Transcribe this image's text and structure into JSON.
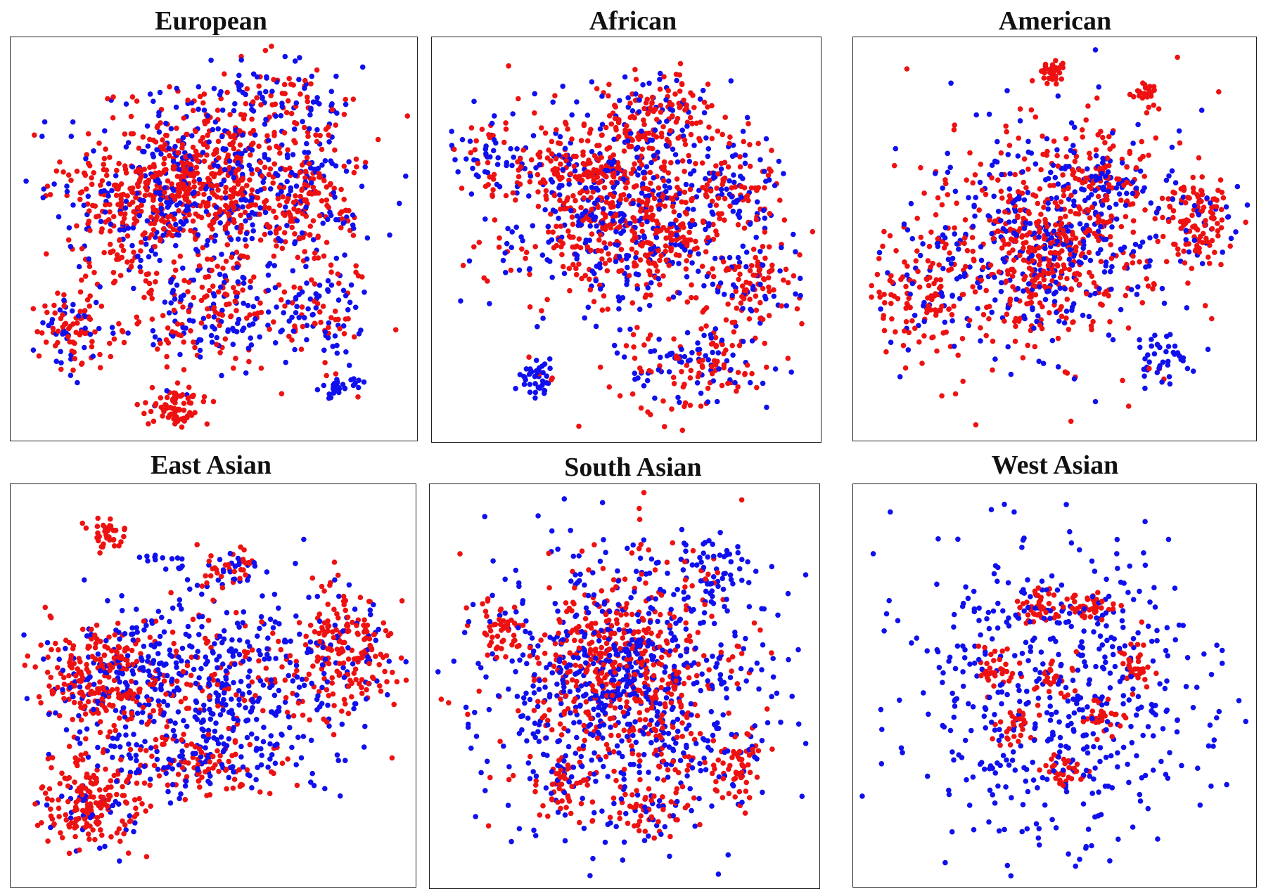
{
  "chart_data": [
    {
      "type": "scatter",
      "title": "European",
      "xlabel": "",
      "ylabel": "",
      "xlim": [
        0,
        100
      ],
      "ylim": [
        0,
        100
      ],
      "grid": false,
      "series_colors": [
        "#1010ee",
        "#ee1111"
      ],
      "clusters": [
        {
          "x": 48,
          "y": 62,
          "sx": 18,
          "sy": 11,
          "n": 600,
          "red": 0.55
        },
        {
          "x": 48,
          "y": 65,
          "sx": 9,
          "sy": 6,
          "n": 180,
          "red": 0.85
        },
        {
          "x": 72,
          "y": 62,
          "sx": 7,
          "sy": 8,
          "n": 160,
          "red": 0.7
        },
        {
          "x": 30,
          "y": 58,
          "sx": 8,
          "sy": 8,
          "n": 160,
          "red": 0.75
        },
        {
          "x": 50,
          "y": 32,
          "sx": 10,
          "sy": 8,
          "n": 220,
          "red": 0.5
        },
        {
          "x": 78,
          "y": 30,
          "sx": 6,
          "sy": 7,
          "n": 100,
          "red": 0.45
        },
        {
          "x": 15,
          "y": 27,
          "sx": 5,
          "sy": 5,
          "n": 110,
          "red": 0.55
        },
        {
          "x": 40,
          "y": 8,
          "sx": 3.5,
          "sy": 3,
          "n": 80,
          "red": 0.95
        },
        {
          "x": 81,
          "y": 13,
          "sx": 2.5,
          "sy": 1.5,
          "n": 30,
          "red": 0.0
        },
        {
          "x": 62,
          "y": 85,
          "sx": 12,
          "sy": 6,
          "n": 150,
          "red": 0.5
        }
      ]
    },
    {
      "type": "scatter",
      "title": "African",
      "xlabel": "",
      "ylabel": "",
      "xlim": [
        0,
        100
      ],
      "ylim": [
        0,
        100
      ],
      "grid": false,
      "series_colors": [
        "#1010ee",
        "#ee1111"
      ],
      "clusters": [
        {
          "x": 48,
          "y": 58,
          "sx": 17,
          "sy": 14,
          "n": 620,
          "red": 0.55
        },
        {
          "x": 38,
          "y": 65,
          "sx": 8,
          "sy": 7,
          "n": 160,
          "red": 0.8
        },
        {
          "x": 58,
          "y": 80,
          "sx": 7,
          "sy": 6,
          "n": 150,
          "red": 0.7
        },
        {
          "x": 56,
          "y": 50,
          "sx": 7,
          "sy": 6,
          "n": 140,
          "red": 0.75
        },
        {
          "x": 78,
          "y": 62,
          "sx": 6,
          "sy": 7,
          "n": 110,
          "red": 0.6
        },
        {
          "x": 82,
          "y": 40,
          "sx": 7,
          "sy": 5,
          "n": 110,
          "red": 0.65
        },
        {
          "x": 67,
          "y": 18,
          "sx": 9,
          "sy": 6,
          "n": 160,
          "red": 0.6
        },
        {
          "x": 27,
          "y": 16,
          "sx": 2.5,
          "sy": 2.5,
          "n": 45,
          "red": 0.05
        },
        {
          "x": 12,
          "y": 72,
          "sx": 4,
          "sy": 6,
          "n": 50,
          "red": 0.4
        }
      ]
    },
    {
      "type": "scatter",
      "title": "American",
      "xlabel": "",
      "ylabel": "",
      "xlim": [
        0,
        100
      ],
      "ylim": [
        0,
        100
      ],
      "grid": false,
      "series_colors": [
        "#1010ee",
        "#ee1111"
      ],
      "clusters": [
        {
          "x": 48,
          "y": 50,
          "sx": 18,
          "sy": 16,
          "n": 700,
          "red": 0.55
        },
        {
          "x": 46,
          "y": 46,
          "sx": 7,
          "sy": 7,
          "n": 180,
          "red": 0.8
        },
        {
          "x": 63,
          "y": 65,
          "sx": 7,
          "sy": 5,
          "n": 120,
          "red": 0.6
        },
        {
          "x": 87,
          "y": 56,
          "sx": 4.5,
          "sy": 6,
          "n": 110,
          "red": 0.8
        },
        {
          "x": 15,
          "y": 35,
          "sx": 6,
          "sy": 7,
          "n": 110,
          "red": 0.75
        },
        {
          "x": 49,
          "y": 92,
          "sx": 2,
          "sy": 1.8,
          "n": 35,
          "red": 1.0
        },
        {
          "x": 73,
          "y": 87,
          "sx": 1.6,
          "sy": 1.6,
          "n": 25,
          "red": 1.0
        },
        {
          "x": 77,
          "y": 20,
          "sx": 3,
          "sy": 3.5,
          "n": 40,
          "red": 0.15
        }
      ]
    },
    {
      "type": "scatter",
      "title": "East Asian",
      "xlabel": "",
      "ylabel": "",
      "xlim": [
        0,
        100
      ],
      "ylim": [
        0,
        100
      ],
      "grid": false,
      "series_colors": [
        "#1010ee",
        "#ee1111"
      ],
      "clusters": [
        {
          "x": 48,
          "y": 50,
          "sx": 19,
          "sy": 11,
          "n": 650,
          "red": 0.3
        },
        {
          "x": 21,
          "y": 52,
          "sx": 8,
          "sy": 7,
          "n": 230,
          "red": 0.85
        },
        {
          "x": 83,
          "y": 60,
          "sx": 6,
          "sy": 7,
          "n": 200,
          "red": 0.85
        },
        {
          "x": 20,
          "y": 20,
          "sx": 7,
          "sy": 6,
          "n": 200,
          "red": 0.85
        },
        {
          "x": 48,
          "y": 30,
          "sx": 10,
          "sy": 4,
          "n": 140,
          "red": 0.55
        },
        {
          "x": 23,
          "y": 89,
          "sx": 2,
          "sy": 2,
          "n": 35,
          "red": 1.0
        },
        {
          "x": 55,
          "y": 80,
          "sx": 4,
          "sy": 2.5,
          "n": 50,
          "red": 0.7
        },
        {
          "x": 38,
          "y": 82,
          "sx": 3,
          "sy": 1.2,
          "n": 14,
          "red": 0.0
        }
      ]
    },
    {
      "type": "scatter",
      "title": "South Asian",
      "xlabel": "",
      "ylabel": "",
      "xlim": [
        0,
        100
      ],
      "ylim": [
        0,
        100
      ],
      "grid": false,
      "series_colors": [
        "#1010ee",
        "#ee1111"
      ],
      "clusters": [
        {
          "x": 50,
          "y": 50,
          "sx": 17,
          "sy": 16,
          "n": 750,
          "red": 0.45
        },
        {
          "x": 47,
          "y": 56,
          "sx": 9,
          "sy": 9,
          "n": 260,
          "red": 0.75
        },
        {
          "x": 17,
          "y": 65,
          "sx": 3,
          "sy": 3.5,
          "n": 50,
          "red": 0.9
        },
        {
          "x": 72,
          "y": 80,
          "sx": 4,
          "sy": 3.5,
          "n": 60,
          "red": 0.1
        },
        {
          "x": 78,
          "y": 30,
          "sx": 4,
          "sy": 4,
          "n": 60,
          "red": 0.85
        },
        {
          "x": 57,
          "y": 18,
          "sx": 4,
          "sy": 3,
          "n": 50,
          "red": 0.85
        },
        {
          "x": 34,
          "y": 25,
          "sx": 4,
          "sy": 3,
          "n": 50,
          "red": 0.85
        },
        {
          "x": 50,
          "y": 50,
          "sx": 26,
          "sy": 26,
          "n": 200,
          "red": 0.0
        }
      ]
    },
    {
      "type": "scatter",
      "title": "West Asian",
      "xlabel": "",
      "ylabel": "",
      "xlim": [
        0,
        100
      ],
      "ylim": [
        0,
        100
      ],
      "grid": false,
      "series_colors": [
        "#1010ee",
        "#ee1111"
      ],
      "clusters": [
        {
          "x": 50,
          "y": 48,
          "sx": 20,
          "sy": 21,
          "n": 520,
          "red": 0.0
        },
        {
          "x": 46,
          "y": 70,
          "sx": 3,
          "sy": 2,
          "n": 40,
          "red": 1.0
        },
        {
          "x": 58,
          "y": 70,
          "sx": 3,
          "sy": 2,
          "n": 40,
          "red": 1.0
        },
        {
          "x": 35,
          "y": 55,
          "sx": 2.5,
          "sy": 3,
          "n": 35,
          "red": 1.0
        },
        {
          "x": 70,
          "y": 55,
          "sx": 2.5,
          "sy": 3,
          "n": 35,
          "red": 1.0
        },
        {
          "x": 40,
          "y": 40,
          "sx": 2.5,
          "sy": 2.5,
          "n": 30,
          "red": 1.0
        },
        {
          "x": 62,
          "y": 42,
          "sx": 2.5,
          "sy": 2.5,
          "n": 30,
          "red": 1.0
        },
        {
          "x": 52,
          "y": 28,
          "sx": 3,
          "sy": 2,
          "n": 35,
          "red": 1.0
        },
        {
          "x": 50,
          "y": 52,
          "sx": 3,
          "sy": 3,
          "n": 30,
          "red": 1.0
        }
      ]
    }
  ]
}
